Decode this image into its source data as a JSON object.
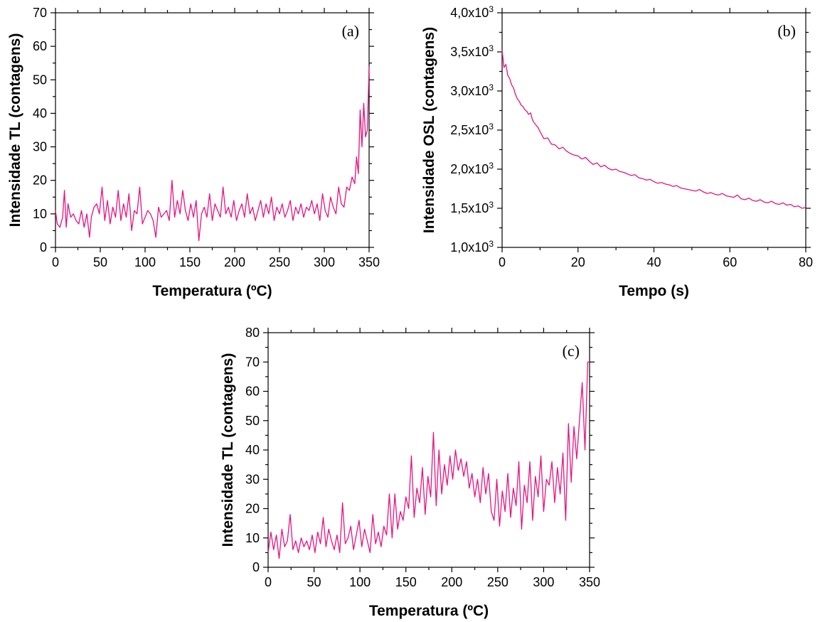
{
  "chart_data": [
    {
      "id": "a",
      "type": "line",
      "panel_label": "(a)",
      "xlabel": "Temperatura (ºC)",
      "ylabel": "Intensidade TL (contagens)",
      "xlim": [
        0,
        350
      ],
      "ylim": [
        0,
        70
      ],
      "xticks": [
        0,
        50,
        100,
        150,
        200,
        250,
        300,
        350
      ],
      "yticks": [
        0,
        10,
        20,
        30,
        40,
        50,
        60,
        70
      ],
      "xtick_labels": [
        "0",
        "50",
        "100",
        "150",
        "200",
        "250",
        "300",
        "350"
      ],
      "ytick_labels": [
        "0",
        "10",
        "20",
        "30",
        "40",
        "50",
        "60",
        "70"
      ],
      "line_color": "#e6137f",
      "series": [
        {
          "x": [
            0,
            2,
            5,
            8,
            10,
            12,
            14,
            17,
            20,
            23,
            26,
            29,
            32,
            35,
            38,
            40,
            43,
            46,
            49,
            52,
            55,
            58,
            61,
            64,
            67,
            70,
            73,
            76,
            79,
            82,
            85,
            88,
            91,
            94,
            97,
            100,
            103,
            106,
            109,
            112,
            115,
            118,
            121,
            124,
            127,
            130,
            133,
            136,
            139,
            142,
            145,
            148,
            151,
            154,
            157,
            160,
            163,
            166,
            169,
            172,
            175,
            178,
            181,
            184,
            187,
            190,
            193,
            196,
            199,
            202,
            205,
            208,
            211,
            214,
            217,
            220,
            223,
            226,
            229,
            232,
            235,
            238,
            241,
            244,
            247,
            250,
            253,
            256,
            259,
            262,
            265,
            268,
            271,
            274,
            277,
            280,
            283,
            286,
            289,
            292,
            295,
            298,
            301,
            304,
            307,
            310,
            313,
            316,
            319,
            322,
            325,
            328,
            331,
            334,
            336,
            338,
            340,
            342,
            344,
            346,
            348,
            350
          ],
          "y": [
            11,
            7,
            6,
            9,
            17,
            6,
            13,
            9,
            10,
            8,
            7,
            11,
            6,
            10,
            3,
            9,
            12,
            13,
            10,
            18,
            8,
            14,
            7,
            12,
            9,
            17,
            8,
            13,
            9,
            16,
            5,
            11,
            10,
            18,
            7,
            9,
            11,
            10,
            8,
            3,
            12,
            9,
            10,
            11,
            8,
            20,
            9,
            14,
            10,
            17,
            11,
            8,
            13,
            9,
            14,
            2,
            10,
            12,
            9,
            16,
            8,
            13,
            11,
            9,
            18,
            10,
            12,
            9,
            14,
            8,
            11,
            13,
            9,
            16,
            10,
            12,
            8,
            11,
            14,
            9,
            13,
            10,
            15,
            8,
            12,
            10,
            13,
            9,
            11,
            14,
            8,
            12,
            10,
            13,
            9,
            12,
            11,
            14,
            10,
            13,
            8,
            16,
            11,
            9,
            15,
            12,
            10,
            18,
            13,
            12,
            18,
            17,
            21,
            19,
            27,
            22,
            41,
            30,
            43,
            33,
            35,
            54
          ]
        }
      ]
    },
    {
      "id": "b",
      "type": "line",
      "panel_label": "(b)",
      "xlabel": "Tempo (s)",
      "ylabel": "Intensidade OSL (contagens)",
      "xlim": [
        0,
        80
      ],
      "ylim": [
        1000,
        4000
      ],
      "xticks": [
        0,
        20,
        40,
        60,
        80
      ],
      "yticks": [
        1000,
        1500,
        2000,
        2500,
        3000,
        3500,
        4000
      ],
      "xtick_labels": [
        "0",
        "20",
        "40",
        "60",
        "80"
      ],
      "ytick_labels": [
        "1,0x10^3",
        "1,5x10^3",
        "2,0x10^3",
        "2,5x10^3",
        "3,0x10^3",
        "3,5x10^3",
        "4,0x10^3"
      ],
      "line_color": "#e6137f",
      "series": [
        {
          "x": [
            0,
            0.5,
            1,
            1.5,
            2,
            2.5,
            3,
            3.5,
            4,
            4.5,
            5,
            5.5,
            6,
            6.5,
            7,
            7.5,
            8,
            8.5,
            9,
            9.5,
            10,
            11,
            12,
            13,
            14,
            15,
            16,
            17,
            18,
            19,
            20,
            21,
            22,
            23,
            24,
            25,
            26,
            27,
            28,
            29,
            30,
            31,
            32,
            33,
            34,
            35,
            36,
            37,
            38,
            39,
            40,
            41,
            42,
            43,
            44,
            45,
            46,
            47,
            48,
            49,
            50,
            51,
            52,
            53,
            54,
            55,
            56,
            57,
            58,
            59,
            60,
            61,
            62,
            63,
            64,
            65,
            66,
            67,
            68,
            69,
            70,
            71,
            72,
            73,
            74,
            75,
            76,
            77,
            78,
            79,
            80
          ],
          "y": [
            3520,
            3300,
            3340,
            3200,
            3160,
            3080,
            3040,
            2960,
            2900,
            2870,
            2820,
            2800,
            2760,
            2740,
            2700,
            2720,
            2630,
            2590,
            2560,
            2530,
            2480,
            2390,
            2400,
            2320,
            2310,
            2260,
            2280,
            2230,
            2200,
            2180,
            2170,
            2130,
            2150,
            2100,
            2060,
            2080,
            2030,
            2050,
            2010,
            1990,
            2000,
            1970,
            1960,
            1940,
            1920,
            1930,
            1890,
            1880,
            1860,
            1870,
            1840,
            1820,
            1830,
            1810,
            1800,
            1780,
            1790,
            1760,
            1750,
            1740,
            1730,
            1720,
            1740,
            1710,
            1690,
            1700,
            1680,
            1670,
            1690,
            1660,
            1650,
            1640,
            1670,
            1620,
            1610,
            1630,
            1600,
            1590,
            1610,
            1580,
            1570,
            1590,
            1560,
            1550,
            1570,
            1540,
            1550,
            1520,
            1530,
            1500,
            1510
          ]
        }
      ]
    },
    {
      "id": "c",
      "type": "line",
      "panel_label": "(c)",
      "xlabel": "Temperatura (ºC)",
      "ylabel": "Intensidade TL (contagens)",
      "xlim": [
        0,
        350
      ],
      "ylim": [
        0,
        80
      ],
      "xticks": [
        0,
        50,
        100,
        150,
        200,
        250,
        300,
        350
      ],
      "yticks": [
        0,
        10,
        20,
        30,
        40,
        50,
        60,
        70,
        80
      ],
      "xtick_labels": [
        "0",
        "50",
        "100",
        "150",
        "200",
        "250",
        "300",
        "350"
      ],
      "ytick_labels": [
        "0",
        "10",
        "20",
        "30",
        "40",
        "50",
        "60",
        "70",
        "80"
      ],
      "line_color": "#e6137f",
      "series": [
        {
          "x": [
            0,
            3,
            6,
            9,
            12,
            15,
            18,
            21,
            24,
            27,
            30,
            33,
            36,
            39,
            42,
            45,
            48,
            51,
            54,
            57,
            60,
            63,
            66,
            69,
            72,
            75,
            78,
            81,
            84,
            87,
            90,
            93,
            96,
            99,
            102,
            105,
            108,
            111,
            114,
            117,
            120,
            123,
            126,
            129,
            132,
            135,
            138,
            141,
            144,
            147,
            150,
            153,
            156,
            159,
            162,
            165,
            168,
            171,
            174,
            177,
            180,
            183,
            186,
            189,
            192,
            195,
            198,
            201,
            204,
            207,
            210,
            213,
            216,
            219,
            222,
            225,
            228,
            231,
            234,
            237,
            240,
            243,
            246,
            249,
            252,
            255,
            258,
            261,
            264,
            267,
            270,
            273,
            276,
            279,
            282,
            285,
            288,
            291,
            294,
            297,
            300,
            303,
            306,
            309,
            312,
            315,
            318,
            321,
            324,
            327,
            330,
            333,
            336,
            339,
            342,
            345,
            348,
            350
          ],
          "y": [
            5,
            12,
            6,
            11,
            3,
            13,
            7,
            9,
            18,
            6,
            9,
            5,
            10,
            7,
            9,
            6,
            11,
            5,
            12,
            8,
            17,
            7,
            13,
            9,
            6,
            11,
            5,
            22,
            8,
            10,
            14,
            6,
            11,
            16,
            7,
            13,
            9,
            5,
            18,
            8,
            12,
            7,
            14,
            11,
            25,
            10,
            25,
            13,
            19,
            16,
            24,
            20,
            38,
            17,
            27,
            22,
            34,
            18,
            31,
            24,
            46,
            21,
            40,
            25,
            35,
            28,
            38,
            30,
            40,
            33,
            37,
            31,
            36,
            27,
            32,
            24,
            30,
            22,
            34,
            25,
            32,
            19,
            16,
            30,
            14,
            26,
            19,
            32,
            17,
            27,
            21,
            36,
            13,
            28,
            22,
            36,
            16,
            31,
            24,
            38,
            19,
            30,
            28,
            36,
            22,
            34,
            25,
            39,
            16,
            49,
            29,
            48,
            37,
            50,
            63,
            40,
            70,
            70
          ]
        }
      ]
    }
  ]
}
